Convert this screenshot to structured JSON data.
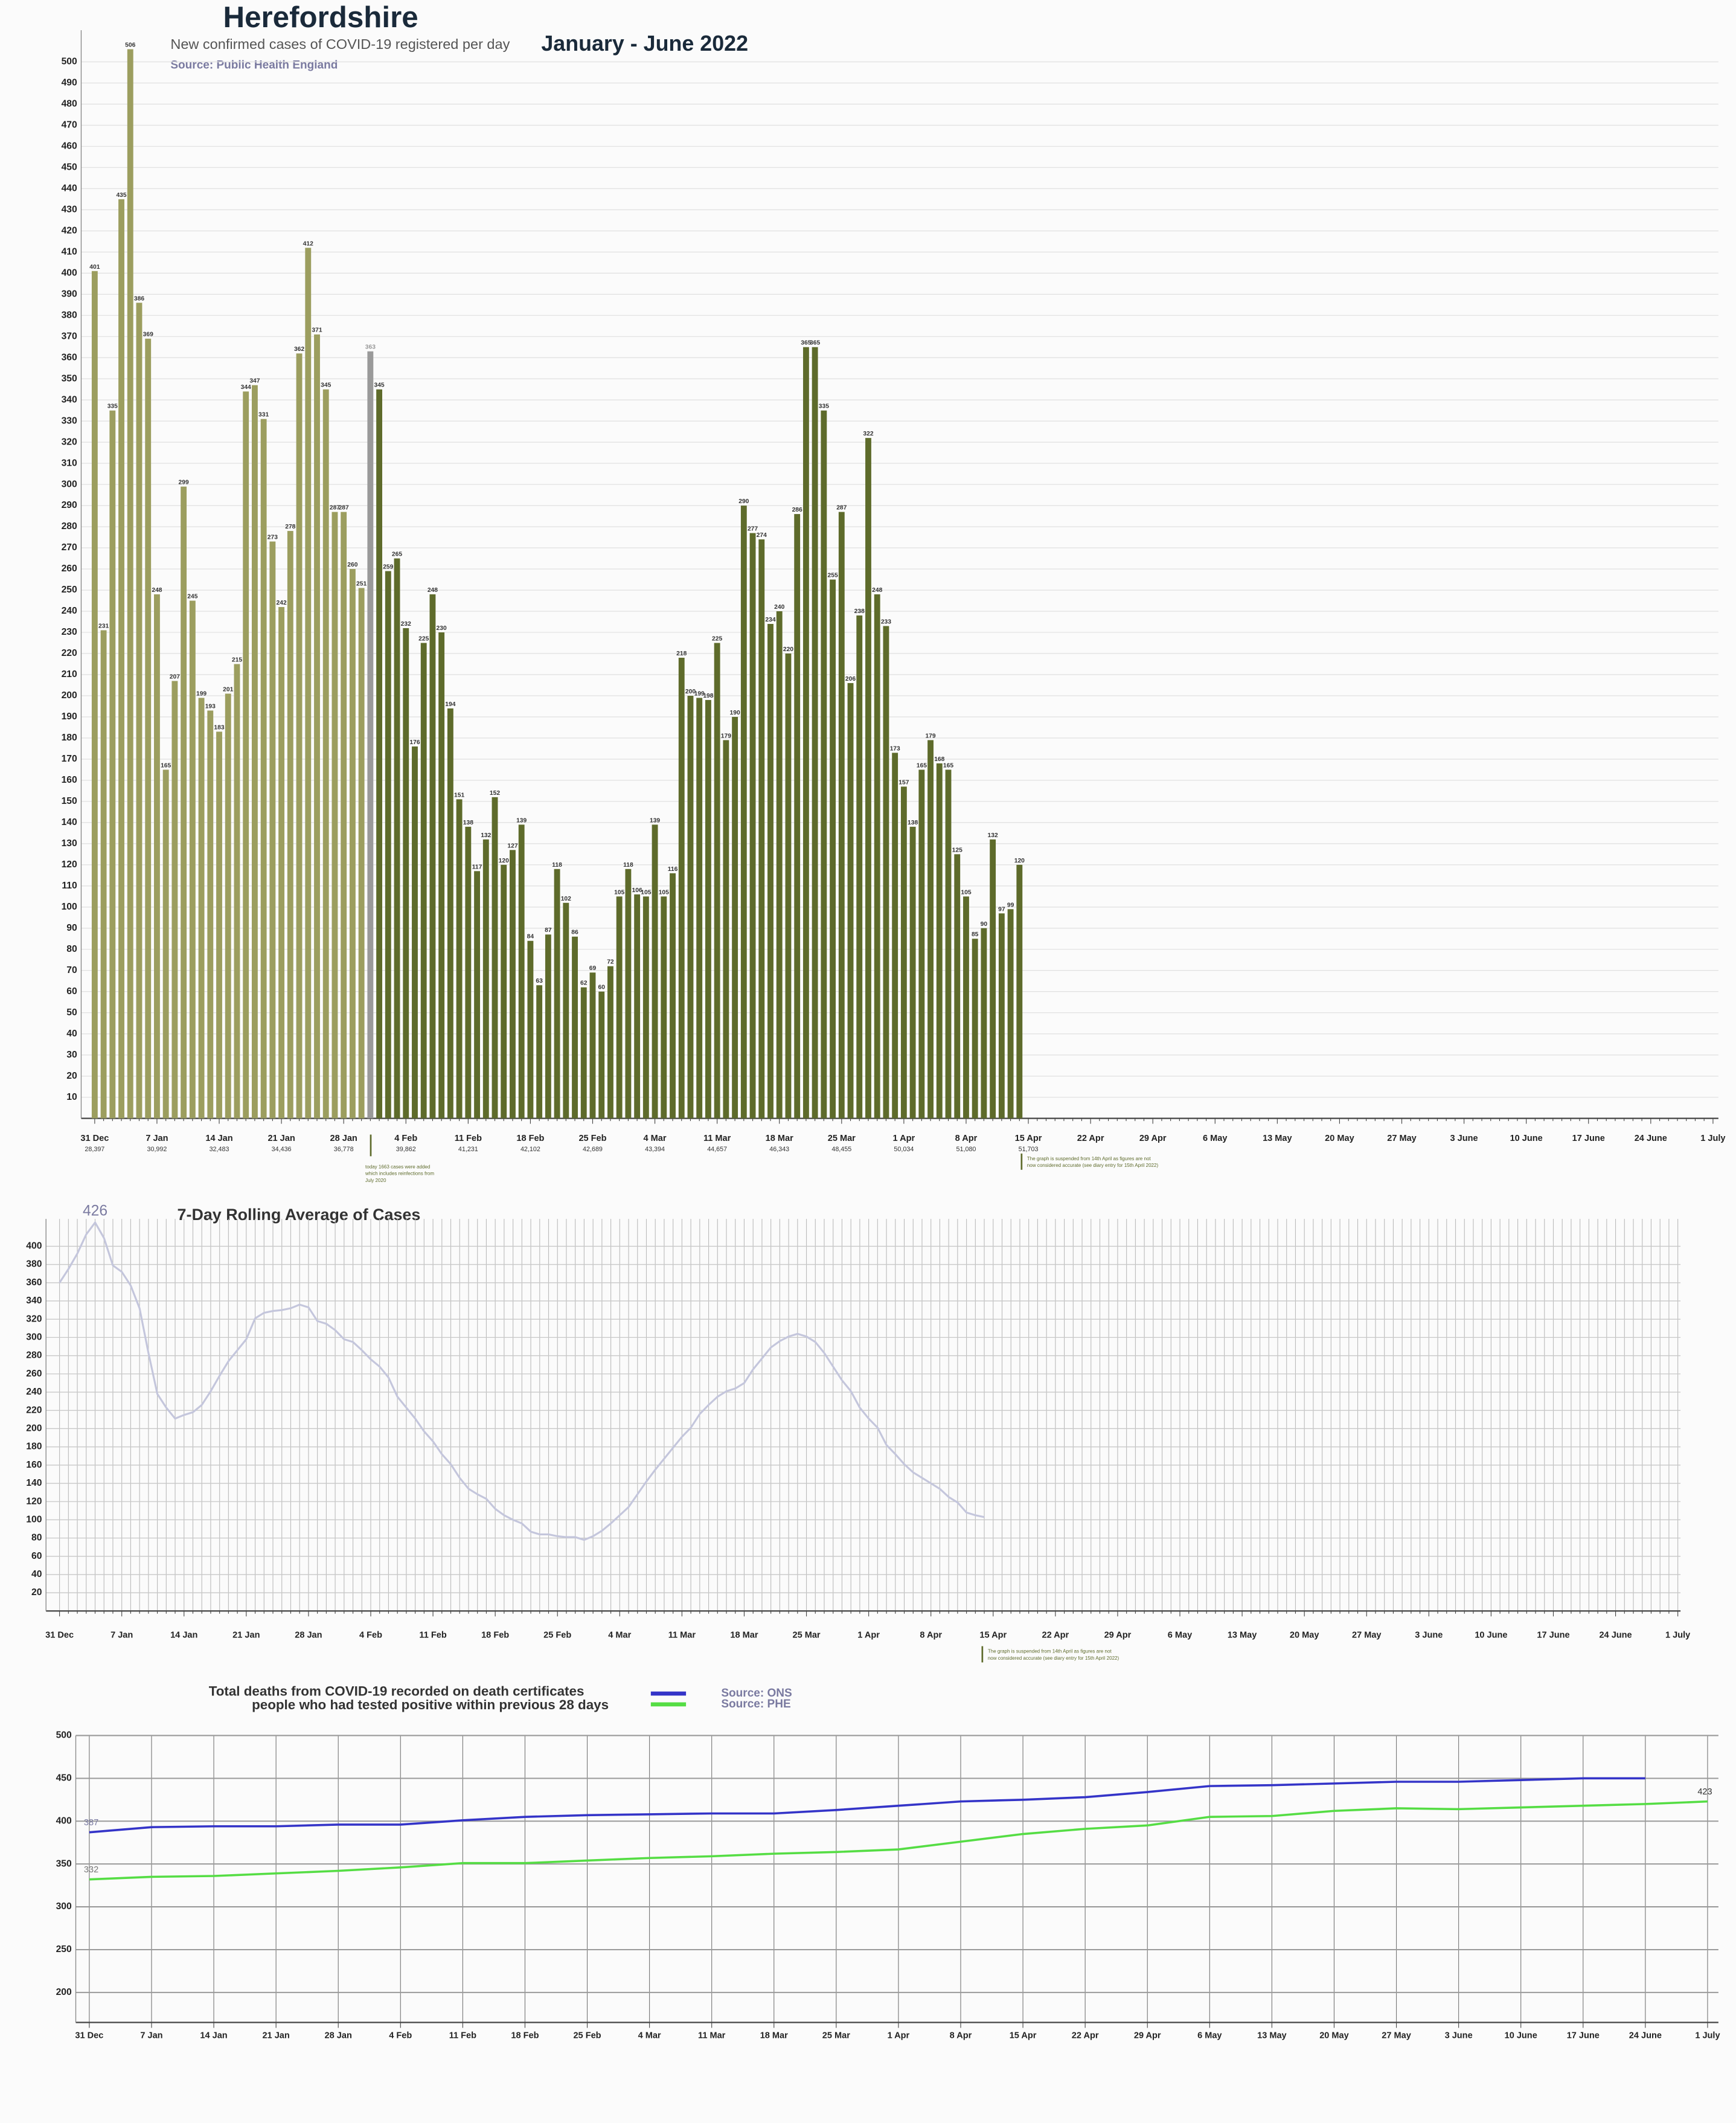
{
  "chart_data": [
    {
      "type": "bar",
      "title": "Herefordshire",
      "subtitle": "New confirmed cases of COVID-19 registered per day",
      "period": "January - June 2022",
      "source": "Source:  Public Health England",
      "categories": [
        "31 Dec",
        null,
        null,
        null,
        null,
        null,
        null,
        "7 Jan",
        null,
        null,
        null,
        null,
        null,
        null,
        "14 Jan",
        null,
        null,
        null,
        null,
        null,
        null,
        "21 Jan",
        null,
        null,
        null,
        null,
        null,
        null,
        "28 Jan",
        null,
        null,
        null,
        null,
        null,
        null,
        "4 Feb",
        null,
        null,
        null,
        null,
        null,
        null,
        "11 Feb",
        null,
        null,
        null,
        null,
        null,
        null,
        "18 Feb",
        null,
        null,
        null,
        null,
        null,
        null,
        "25 Feb",
        null,
        null,
        null,
        null,
        null,
        null,
        "4 Mar",
        null,
        null,
        null,
        null,
        null,
        null,
        "11 Mar",
        null,
        null,
        null,
        null,
        null,
        null,
        "18 Mar",
        null,
        null,
        null,
        null,
        null,
        null,
        "25 Mar",
        null,
        null,
        null,
        null,
        null,
        null,
        "1 Apr",
        null,
        null,
        null,
        null,
        null,
        null,
        "8 Apr",
        null,
        null,
        null,
        null,
        null,
        null,
        "15 Apr",
        null,
        null,
        null,
        null,
        null,
        null,
        "22 Apr",
        null,
        null,
        null,
        null,
        null,
        null,
        "29 Apr",
        null,
        null,
        null,
        null,
        null,
        null,
        "6 May",
        null,
        null,
        null,
        null,
        null,
        null,
        "13 May",
        null,
        null,
        null,
        null,
        null,
        null,
        "20 May",
        null,
        null,
        null,
        null,
        null,
        null,
        "27 May",
        null,
        null,
        null,
        null,
        null,
        null,
        "3 June",
        null,
        null,
        null,
        null,
        null,
        null,
        "10  June",
        null,
        null,
        null,
        null,
        null,
        null,
        "17 June",
        null,
        null,
        null,
        null,
        null,
        null,
        "24 June",
        null,
        null,
        null,
        null,
        null,
        null,
        "1 July"
      ],
      "values": [
        401,
        231,
        335,
        435,
        506,
        386,
        369,
        248,
        165,
        207,
        299,
        245,
        199,
        193,
        183,
        201,
        215,
        344,
        347,
        331,
        273,
        242,
        278,
        362,
        412,
        371,
        345,
        287,
        287,
        260,
        251,
        363,
        345,
        259,
        265,
        232,
        176,
        225,
        248,
        230,
        194,
        151,
        138,
        117,
        132,
        152,
        120,
        127,
        139,
        84,
        63,
        87,
        118,
        102,
        86,
        62,
        69,
        60,
        72,
        105,
        118,
        106,
        105,
        139,
        105,
        116,
        218,
        200,
        199,
        198,
        225,
        179,
        190,
        290,
        277,
        274,
        234,
        240,
        220,
        286,
        365,
        365,
        335,
        255,
        287,
        206,
        238,
        322,
        248,
        233,
        173,
        157,
        138,
        165,
        179,
        168,
        165,
        125,
        105,
        85,
        90,
        132,
        97,
        99,
        120,
        null,
        null,
        null,
        null,
        null,
        null,
        null,
        null,
        null,
        null,
        null,
        null,
        null,
        null,
        null,
        null,
        null,
        null,
        null,
        null,
        null,
        null,
        null,
        null,
        null,
        null,
        null,
        null,
        null,
        null,
        null,
        null,
        null,
        null,
        null,
        null,
        null,
        null,
        null,
        null,
        null,
        null,
        null,
        null,
        null,
        null,
        null,
        null,
        null,
        null,
        null,
        null,
        null,
        null,
        null,
        null,
        null,
        null,
        null,
        null,
        null,
        null,
        null,
        null,
        null,
        null,
        null,
        null,
        null,
        null,
        null,
        null,
        null,
        null,
        null,
        null,
        null,
        null
      ],
      "colors": [
        "#9c9e5f",
        "#9c9e5f",
        "#9c9e5f",
        "#9c9e5f",
        "#9c9e5f",
        "#9c9e5f",
        "#9c9e5f",
        "#9c9e5f",
        "#9c9e5f",
        "#9c9e5f",
        "#9c9e5f",
        "#9c9e5f",
        "#9c9e5f",
        "#9c9e5f",
        "#9c9e5f",
        "#9c9e5f",
        "#9c9e5f",
        "#9c9e5f",
        "#9c9e5f",
        "#9c9e5f",
        "#9c9e5f",
        "#9c9e5f",
        "#9c9e5f",
        "#9c9e5f",
        "#9c9e5f",
        "#9c9e5f",
        "#9c9e5f",
        "#9c9e5f",
        "#9c9e5f",
        "#9c9e5f",
        "#9c9e5f",
        "#9a9a9a",
        "#5e6b2b",
        "#5e6b2b",
        "#5e6b2b",
        "#5e6b2b",
        "#5e6b2b",
        "#5e6b2b",
        "#5e6b2b",
        "#5e6b2b",
        "#5e6b2b",
        "#5e6b2b",
        "#5e6b2b",
        "#5e6b2b",
        "#5e6b2b",
        "#5e6b2b",
        "#5e6b2b",
        "#5e6b2b",
        "#5e6b2b",
        "#5e6b2b",
        "#5e6b2b",
        "#5e6b2b",
        "#5e6b2b",
        "#5e6b2b",
        "#5e6b2b",
        "#5e6b2b",
        "#5e6b2b",
        "#5e6b2b",
        "#5e6b2b",
        "#5e6b2b",
        "#5e6b2b",
        "#5e6b2b",
        "#5e6b2b",
        "#5e6b2b",
        "#5e6b2b",
        "#5e6b2b",
        "#5e6b2b",
        "#5e6b2b",
        "#5e6b2b",
        "#5e6b2b",
        "#5e6b2b",
        "#5e6b2b",
        "#5e6b2b",
        "#5e6b2b",
        "#5e6b2b",
        "#5e6b2b",
        "#5e6b2b",
        "#5e6b2b",
        "#5e6b2b",
        "#5e6b2b",
        "#5e6b2b",
        "#5e6b2b",
        "#5e6b2b",
        "#5e6b2b",
        "#5e6b2b",
        "#5e6b2b",
        "#5e6b2b",
        "#5e6b2b",
        "#5e6b2b",
        "#5e6b2b",
        "#5e6b2b",
        "#5e6b2b",
        "#5e6b2b",
        "#5e6b2b",
        "#5e6b2b",
        "#5e6b2b",
        "#5e6b2b",
        "#5e6b2b",
        "#5e6b2b",
        "#5e6b2b",
        "#5e6b2b",
        "#5e6b2b",
        "#5e6b2b",
        "#5e6b2b",
        "#5e6b2b",
        "#5e6b2b",
        "#5e6b2b",
        "#5e6b2b",
        "#5e6b2b",
        "#5e6b2b",
        "#5e6b2b",
        "#5e6b2b",
        "#5e6b2b",
        "#5e6b2b",
        "#5e6b2b",
        "#5e6b2b",
        "#5e6b2b",
        "#5e6b2b",
        "#5e6b2b",
        "#5e6b2b",
        "#5e6b2b",
        "#5e6b2b",
        "#5e6b2b",
        "#5e6b2b",
        "#5e6b2b",
        null,
        null,
        null,
        null,
        null,
        null,
        null,
        null,
        null,
        null,
        null,
        null,
        null,
        null,
        null,
        null,
        null,
        null,
        null,
        null,
        null,
        null,
        null,
        null,
        null,
        null,
        null,
        null,
        null,
        null,
        null,
        null,
        null,
        null,
        null,
        null,
        null,
        null,
        null,
        null,
        null,
        null,
        null,
        null,
        null,
        null,
        null,
        null,
        null,
        null,
        null,
        null,
        null,
        null,
        null,
        null,
        null,
        null,
        null,
        null,
        null,
        null,
        null,
        null,
        null,
        null,
        null,
        null,
        null,
        null,
        null,
        null,
        null,
        null,
        null,
        null,
        null,
        null
      ],
      "week_totals": [
        {
          "value": 28397,
          "label": "28,397"
        },
        {
          "value": 30992,
          "label": "30,992"
        },
        {
          "value": 32483,
          "label": "32,483"
        },
        {
          "value": 34436,
          "label": "34,436"
        },
        {
          "value": 36778,
          "label": "36,778"
        },
        {
          "value": 39862,
          "label": "39,862"
        },
        {
          "value": 41231,
          "label": "41,231"
        },
        {
          "value": 42102,
          "label": "42,102"
        },
        {
          "value": 42689,
          "label": "42,689"
        },
        {
          "value": 43394,
          "label": "43,394"
        },
        {
          "value": 44657,
          "label": "44,657"
        },
        {
          "value": 46343,
          "label": "46,343"
        },
        {
          "value": 48455,
          "label": "48,455"
        },
        {
          "value": 50034,
          "label": "50,034"
        },
        {
          "value": 51080,
          "label": "51,080"
        },
        {
          "value": 51703,
          "label": "51,703"
        }
      ],
      "notes": [
        [
          "today 1663 cases were added",
          "which includes reinfections from",
          "July 2020"
        ],
        [
          "The graph is suspended from 14th April as figures are not",
          "now considered accurate (see diary entry for 15th April 2022)"
        ]
      ],
      "ylim": [
        0,
        515
      ],
      "yticks": [
        10,
        20,
        30,
        40,
        50,
        60,
        70,
        80,
        90,
        100,
        110,
        120,
        130,
        140,
        150,
        160,
        170,
        180,
        190,
        200,
        210,
        220,
        230,
        240,
        250,
        260,
        270,
        280,
        290,
        300,
        310,
        320,
        330,
        340,
        350,
        360,
        370,
        380,
        390,
        400,
        410,
        420,
        430,
        440,
        450,
        460,
        470,
        480,
        490,
        500
      ],
      "grid": true
    },
    {
      "type": "line",
      "title": "7-Day Rolling Average of Cases",
      "color": "#c4c6dc",
      "categories": [
        "31 Dec",
        null,
        null,
        null,
        null,
        null,
        null,
        "7 Jan",
        null,
        null,
        null,
        null,
        null,
        null,
        "14 Jan",
        null,
        null,
        null,
        null,
        null,
        null,
        "21 Jan",
        null,
        null,
        null,
        null,
        null,
        null,
        "28 Jan",
        null,
        null,
        null,
        null,
        null,
        null,
        "4 Feb",
        null,
        null,
        null,
        null,
        null,
        null,
        "11 Feb",
        null,
        null,
        null,
        null,
        null,
        null,
        "18 Feb",
        null,
        null,
        null,
        null,
        null,
        null,
        "25 Feb",
        null,
        null,
        null,
        null,
        null,
        null,
        "4 Mar",
        null,
        null,
        null,
        null,
        null,
        null,
        "11 Mar",
        null,
        null,
        null,
        null,
        null,
        null,
        "18 Mar",
        null,
        null,
        null,
        null,
        null,
        null,
        "25 Mar",
        null,
        null,
        null,
        null,
        null,
        null,
        "1 Apr",
        null,
        null,
        null,
        null,
        null,
        null,
        "8 Apr",
        null,
        null,
        null,
        null,
        null,
        null,
        "15 Apr",
        null,
        null,
        null,
        null,
        null,
        null,
        "22 Apr",
        null,
        null,
        null,
        null,
        null,
        null,
        "29 Apr",
        null,
        null,
        null,
        null,
        null,
        null,
        "6 May",
        null,
        null,
        null,
        null,
        null,
        null,
        "13 May",
        null,
        null,
        null,
        null,
        null,
        null,
        "20 May",
        null,
        null,
        null,
        null,
        null,
        null,
        "27 May",
        null,
        null,
        null,
        null,
        null,
        null,
        "3 June",
        null,
        null,
        null,
        null,
        null,
        null,
        "10  June",
        null,
        null,
        null,
        null,
        null,
        null,
        "17 June",
        null,
        null,
        null,
        null,
        null,
        null,
        "24 June",
        null,
        null,
        null,
        null,
        null,
        null,
        "1 July"
      ],
      "values": [
        360,
        375,
        392,
        413,
        426,
        409,
        379,
        372,
        357,
        332,
        283,
        238,
        223,
        211,
        215,
        218,
        226,
        241,
        258,
        274,
        286,
        298,
        321,
        327,
        329,
        330,
        332,
        336,
        333,
        318,
        315,
        308,
        298,
        295,
        286,
        276,
        268,
        256,
        235,
        223,
        211,
        197,
        186,
        172,
        161,
        146,
        134,
        128,
        123,
        112,
        105,
        100,
        96,
        87,
        84,
        84,
        82,
        81,
        81,
        78,
        82,
        88,
        96,
        105,
        114,
        128,
        142,
        155,
        167,
        179,
        191,
        201,
        216,
        226,
        235,
        241,
        244,
        250,
        265,
        277,
        289,
        296,
        301,
        304,
        301,
        295,
        283,
        268,
        253,
        241,
        223,
        211,
        201,
        182,
        172,
        161,
        152,
        146,
        140,
        134,
        125,
        119,
        108,
        105,
        103,
        null,
        null,
        null,
        null,
        null,
        null,
        null,
        null,
        null,
        null,
        null,
        null,
        null,
        null,
        null,
        null,
        null,
        null,
        null,
        null,
        null,
        null,
        null,
        null,
        null,
        null,
        null,
        null,
        null,
        null,
        null,
        null,
        null,
        null,
        null,
        null,
        null,
        null,
        null,
        null,
        null,
        null,
        null,
        null,
        null,
        null,
        null,
        null,
        null,
        null,
        null,
        null,
        null,
        null,
        null,
        null,
        null,
        null,
        null,
        null,
        null,
        null,
        null,
        null,
        null,
        null,
        null,
        null,
        null,
        null,
        null,
        null,
        null,
        null,
        null,
        null,
        null,
        null
      ],
      "notes": [
        [
          "The graph is suspended from 14th April as figures are not",
          "now considered accurate (see diary entry for 15th April 2022)"
        ]
      ],
      "ylim": [
        0,
        430
      ],
      "yticks": [
        20,
        40,
        60,
        80,
        100,
        120,
        140,
        160,
        180,
        200,
        220,
        240,
        260,
        280,
        300,
        320,
        340,
        360,
        380,
        400
      ],
      "grid": true
    },
    {
      "type": "line",
      "title": [
        "Total deaths from COVID-19 recorded on death certificates",
        "people who had tested positive within  previous 28 days"
      ],
      "categories": [
        "31 Dec",
        "7 Jan",
        "14 Jan",
        "21 Jan",
        "28 Jan",
        "4 Feb",
        "11 Feb",
        "18 Feb",
        "25 Feb",
        "4 Mar",
        "11 Mar",
        "18 Mar",
        "25 Mar",
        "1 Apr",
        "8 Apr",
        "15 Apr",
        "22 Apr",
        "29 Apr",
        "6 May",
        "13 May",
        "20 May",
        "27 May",
        "3 June",
        "10  June",
        "17 June",
        "24 June",
        "1 July"
      ],
      "series": [
        {
          "name": "Source: ONS",
          "color": "#3434c8",
          "values": [
            387,
            393,
            394,
            394,
            396,
            396,
            401,
            405,
            407,
            408,
            409,
            409,
            413,
            418,
            423,
            425,
            428,
            434,
            441,
            442,
            444,
            446,
            446,
            448,
            450,
            450,
            null
          ]
        },
        {
          "name": "Source: PHE",
          "color": "#55dd44",
          "values": [
            332,
            335,
            336,
            339,
            342,
            346,
            351,
            351,
            354,
            357,
            359,
            362,
            364,
            367,
            376,
            385,
            391,
            395,
            405,
            406,
            412,
            415,
            414,
            416,
            418,
            420,
            423
          ]
        }
      ],
      "ylim": [
        165,
        500
      ],
      "yticks": [
        200,
        250,
        300,
        350,
        400,
        450,
        500
      ],
      "grid": true
    }
  ]
}
